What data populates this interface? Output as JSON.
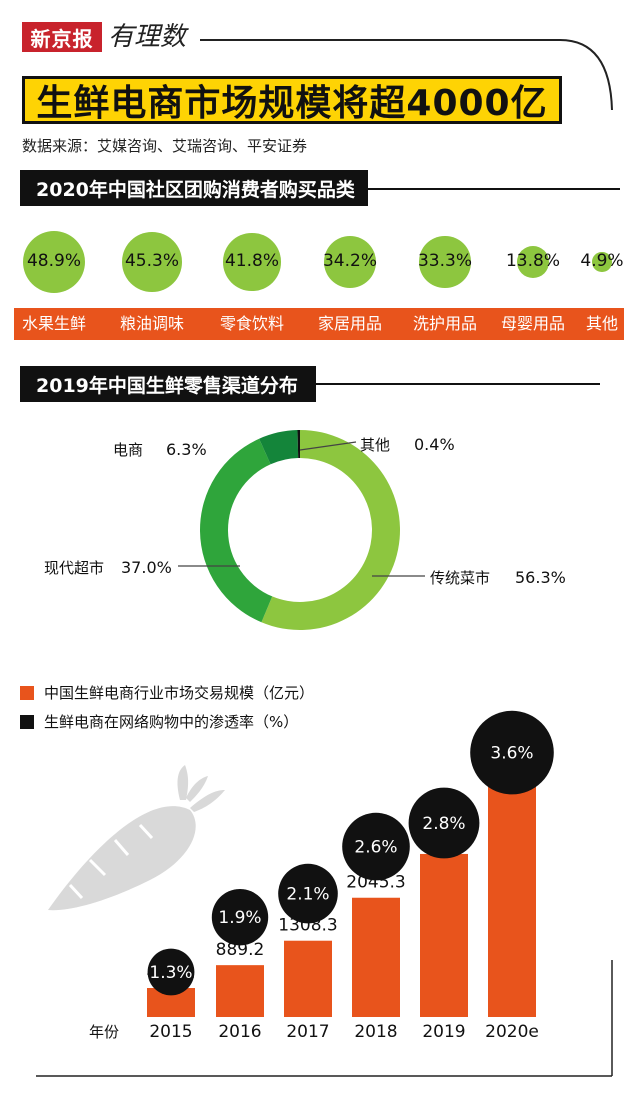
{
  "header": {
    "brand": "新京报",
    "brand_script": "有理数",
    "title": "生鲜电商市场规模将超4000亿",
    "source": "数据来源：艾媒咨询、艾瑞咨询、平安证券"
  },
  "section1": {
    "title": "2020年中国社区团购消费者购买品类"
  },
  "section2": {
    "title": "2019年中国生鲜零售渠道分布"
  },
  "colors": {
    "bar": "#e8541c",
    "bubble": "#8dc63f",
    "black": "#111111",
    "donut_light": "#8dc63f",
    "donut_mid": "#2fa53b",
    "donut_dark": "#14853a",
    "title_bg": "#fed304"
  },
  "chart_data": [
    {
      "type": "bubble",
      "title": "2020年中国社区团购消费者购买品类",
      "categories": [
        "水果生鲜",
        "粮油调味",
        "零食饮料",
        "家居用品",
        "洗护用品",
        "母婴用品",
        "其他"
      ],
      "values": [
        48.9,
        45.3,
        41.8,
        34.2,
        33.3,
        13.8,
        4.9
      ],
      "labels": [
        "48.9%",
        "45.3%",
        "41.8%",
        "34.2%",
        "33.3%",
        "13.8%",
        "4.9%"
      ]
    },
    {
      "type": "pie",
      "title": "2019年中国生鲜零售渠道分布",
      "categories": [
        "传统菜市",
        "现代超市",
        "电商",
        "其他"
      ],
      "values": [
        56.3,
        37.0,
        6.3,
        0.4
      ],
      "labels": [
        "56.3%",
        "37.0%",
        "6.3%",
        "0.4%"
      ]
    },
    {
      "type": "bar",
      "categories": [
        "2015",
        "2016",
        "2017",
        "2018",
        "2019",
        "2020e"
      ],
      "xlabel": "年份",
      "series": [
        {
          "name": "中国生鲜电商行业市场交易规模（亿元）",
          "values": [
            497.1,
            889.2,
            1308.3,
            2045.3,
            2796.2,
            4047.3
          ],
          "labels": [
            "497.1",
            "889.2",
            "1308.3",
            "2045.3",
            "2796.2",
            "4047.3"
          ]
        },
        {
          "name": "生鲜电商在网络购物中的渗透率（%）",
          "values": [
            1.3,
            1.9,
            2.1,
            2.6,
            2.8,
            3.6
          ],
          "labels": [
            "1.3%",
            "1.9%",
            "2.1%",
            "2.6%",
            "2.8%",
            "3.6%"
          ]
        }
      ]
    }
  ]
}
